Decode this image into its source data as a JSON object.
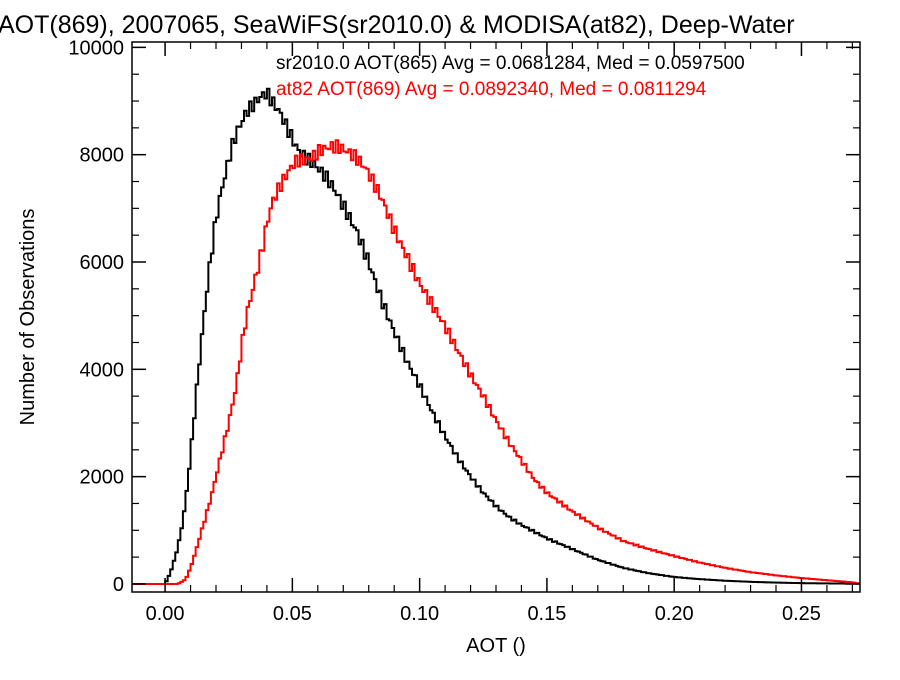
{
  "chart_data": {
    "type": "line",
    "title": "AOT(869), 2007065, SeaWiFS(sr2010.0) & MODISA(at82), Deep-Water",
    "xlabel": "AOT ()",
    "ylabel": "Number of Observations",
    "xlim": [
      -0.013,
      0.273
    ],
    "ylim": [
      -150,
      10100
    ],
    "x_ticks": [
      0.0,
      0.05,
      0.1,
      0.15,
      0.2,
      0.25
    ],
    "x_tick_labels": [
      "0.00",
      "0.05",
      "0.10",
      "0.15",
      "0.20",
      "0.25"
    ],
    "y_ticks": [
      0,
      2000,
      4000,
      6000,
      8000,
      10000
    ],
    "y_tick_labels": [
      "0",
      "2000",
      "4000",
      "6000",
      "8000",
      "10000"
    ],
    "legend_placement": "top-right",
    "step": "histogram",
    "series": [
      {
        "name": "sr2010.0 AOT(865) Avg = 0.0681284, Med = 0.0597500",
        "color": "#000000",
        "x": [
          -0.012,
          0.0,
          0.002,
          0.004,
          0.006,
          0.008,
          0.01,
          0.012,
          0.014,
          0.016,
          0.018,
          0.02,
          0.022,
          0.024,
          0.026,
          0.028,
          0.03,
          0.032,
          0.034,
          0.036,
          0.038,
          0.04,
          0.042,
          0.045,
          0.048,
          0.05,
          0.052,
          0.055,
          0.058,
          0.06,
          0.063,
          0.066,
          0.07,
          0.075,
          0.08,
          0.085,
          0.09,
          0.095,
          0.1,
          0.105,
          0.11,
          0.115,
          0.12,
          0.125,
          0.13,
          0.135,
          0.14,
          0.15,
          0.16,
          0.17,
          0.18,
          0.19,
          0.2,
          0.21,
          0.22,
          0.23,
          0.24,
          0.25,
          0.26,
          0.273
        ],
        "y": [
          0,
          0,
          200,
          500,
          900,
          1500,
          2400,
          3400,
          4400,
          5300,
          6100,
          6800,
          7300,
          7700,
          8100,
          8400,
          8600,
          8800,
          8900,
          9000,
          9100,
          9150,
          9000,
          8800,
          8500,
          8300,
          8100,
          7950,
          7850,
          7750,
          7600,
          7400,
          7050,
          6600,
          6000,
          5300,
          4700,
          4150,
          3700,
          3200,
          2750,
          2350,
          2000,
          1700,
          1450,
          1250,
          1100,
          850,
          650,
          450,
          300,
          200,
          130,
          90,
          60,
          40,
          25,
          15,
          10,
          5
        ]
      },
      {
        "name": "at82 AOT(869) Avg = 0.0892340, Med = 0.0811294",
        "color": "#ff0000",
        "x": [
          -0.012,
          0.005,
          0.008,
          0.01,
          0.012,
          0.015,
          0.018,
          0.02,
          0.022,
          0.025,
          0.028,
          0.03,
          0.032,
          0.035,
          0.038,
          0.04,
          0.042,
          0.045,
          0.048,
          0.05,
          0.052,
          0.055,
          0.058,
          0.06,
          0.062,
          0.065,
          0.068,
          0.07,
          0.072,
          0.075,
          0.078,
          0.08,
          0.085,
          0.09,
          0.095,
          0.1,
          0.105,
          0.11,
          0.115,
          0.12,
          0.125,
          0.13,
          0.135,
          0.14,
          0.145,
          0.15,
          0.16,
          0.17,
          0.18,
          0.19,
          0.2,
          0.21,
          0.22,
          0.23,
          0.24,
          0.25,
          0.26,
          0.27,
          0.273
        ],
        "y": [
          0,
          0,
          80,
          300,
          600,
          1100,
          1600,
          2000,
          2400,
          3000,
          3700,
          4400,
          5000,
          5600,
          6200,
          6700,
          7100,
          7400,
          7650,
          7800,
          7900,
          7900,
          7950,
          8050,
          8100,
          8150,
          8150,
          8100,
          8050,
          7950,
          7800,
          7650,
          7200,
          6600,
          6100,
          5600,
          5200,
          4800,
          4350,
          3900,
          3500,
          3050,
          2650,
          2300,
          1950,
          1700,
          1350,
          1050,
          800,
          650,
          520,
          400,
          300,
          220,
          160,
          110,
          70,
          30,
          0
        ]
      }
    ]
  }
}
